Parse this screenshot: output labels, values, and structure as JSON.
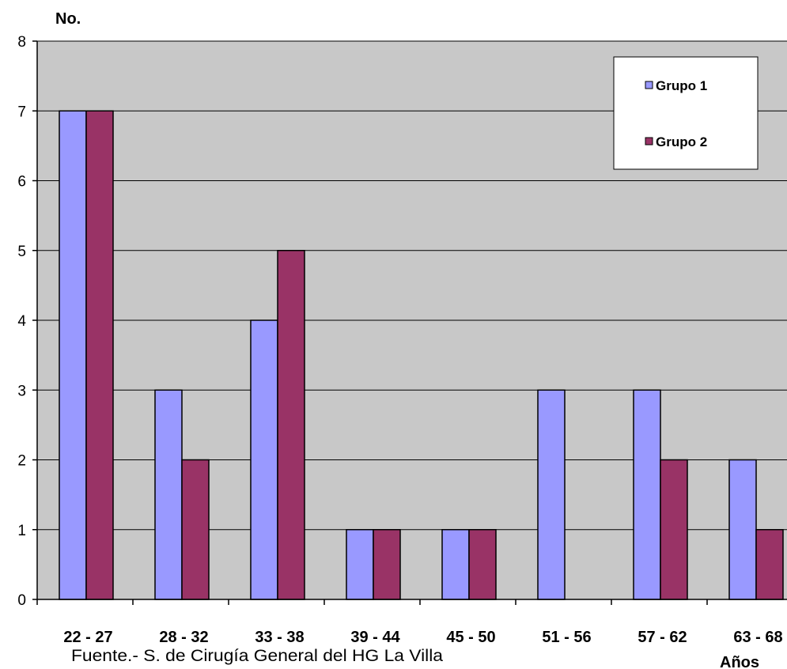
{
  "chart_data": {
    "type": "bar",
    "ylabel": "No.",
    "xlabel": "Años",
    "categories": [
      "22 - 27",
      "28 - 32",
      "33 - 38",
      "39 - 44",
      "45 - 50",
      "51 - 56",
      "57 - 62",
      "63 - 68"
    ],
    "series": [
      {
        "name": "Grupo 1",
        "values": [
          7,
          3,
          4,
          1,
          1,
          3,
          3,
          2
        ]
      },
      {
        "name": "Grupo 2",
        "values": [
          7,
          2,
          5,
          1,
          1,
          0,
          2,
          1
        ]
      }
    ],
    "ylim": [
      0,
      8
    ],
    "yticks": [
      0,
      1,
      2,
      3,
      4,
      5,
      6,
      7,
      8
    ],
    "grid": true,
    "legend": "top-right",
    "source_note": "Fuente.- S. de Cirugía General del HG La Villa",
    "colors": {
      "plot_bg": "#c8c8c8",
      "series": [
        "#9999ff",
        "#993366"
      ],
      "gridline": "#000000"
    }
  }
}
